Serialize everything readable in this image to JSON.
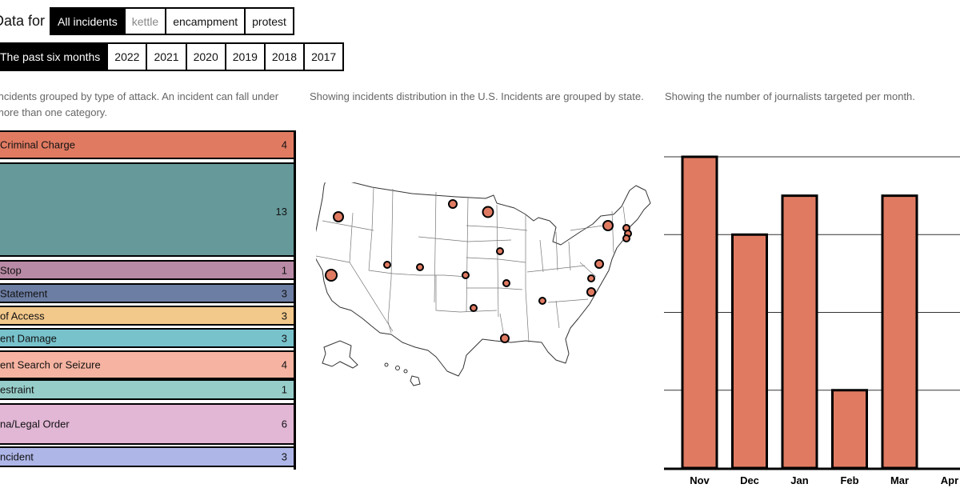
{
  "filters": {
    "type_lead": "Data for",
    "type_options": [
      {
        "label": "All incidents",
        "state": "active"
      },
      {
        "label": "kettle",
        "state": "muted"
      },
      {
        "label": "encampment",
        "state": "normal"
      },
      {
        "label": "protest",
        "state": "normal"
      }
    ],
    "period_options": [
      {
        "label": "The past six months",
        "state": "active"
      },
      {
        "label": "2022",
        "state": "normal"
      },
      {
        "label": "2021",
        "state": "normal"
      },
      {
        "label": "2020",
        "state": "normal"
      },
      {
        "label": "2019",
        "state": "normal"
      },
      {
        "label": "2018",
        "state": "normal"
      },
      {
        "label": "2017",
        "state": "normal"
      }
    ]
  },
  "captions": {
    "categories": "Incidents grouped by type of attack. An incident can fall under more than one category.",
    "map": "Showing incidents distribution in the U.S. Incidents are grouped by state.",
    "bars": "Showing the number of journalists targeted per month."
  },
  "chart_data": [
    {
      "type": "table",
      "title": "",
      "rows": [
        {
          "label": "Criminal Charge",
          "value": 4,
          "color": "#e07b62"
        },
        {
          "label": "",
          "value": 13,
          "color": "#66999a"
        },
        {
          "label": "Stop",
          "value": 1,
          "color": "#b98aa5"
        },
        {
          "label": "Statement",
          "value": 3,
          "color": "#6d7ea4"
        },
        {
          "label": "of Access",
          "value": 3,
          "color": "#f3c88b"
        },
        {
          "label": "ent Damage",
          "value": 3,
          "color": "#78c2cc"
        },
        {
          "label": "ent Search or Seizure",
          "value": 4,
          "color": "#f6b3a1"
        },
        {
          "label": "estraint",
          "value": 1,
          "color": "#96cdc9"
        },
        {
          "label": "na/Legal Order",
          "value": 6,
          "color": "#e2b6d5"
        },
        {
          "label": "ncident",
          "value": 3,
          "color": "#aeb6e8"
        }
      ]
    },
    {
      "type": "scatter",
      "title": "",
      "note": "US map with incident markers",
      "marker_color": "#e07b62"
    },
    {
      "type": "bar",
      "title": "",
      "categories": [
        "Nov",
        "Dec",
        "Jan",
        "Feb",
        "Mar",
        "Apr"
      ],
      "values": [
        8,
        6,
        7,
        2,
        7,
        0
      ],
      "ylim": [
        0,
        8
      ],
      "grid": true,
      "bar_color": "#e07b62"
    }
  ]
}
